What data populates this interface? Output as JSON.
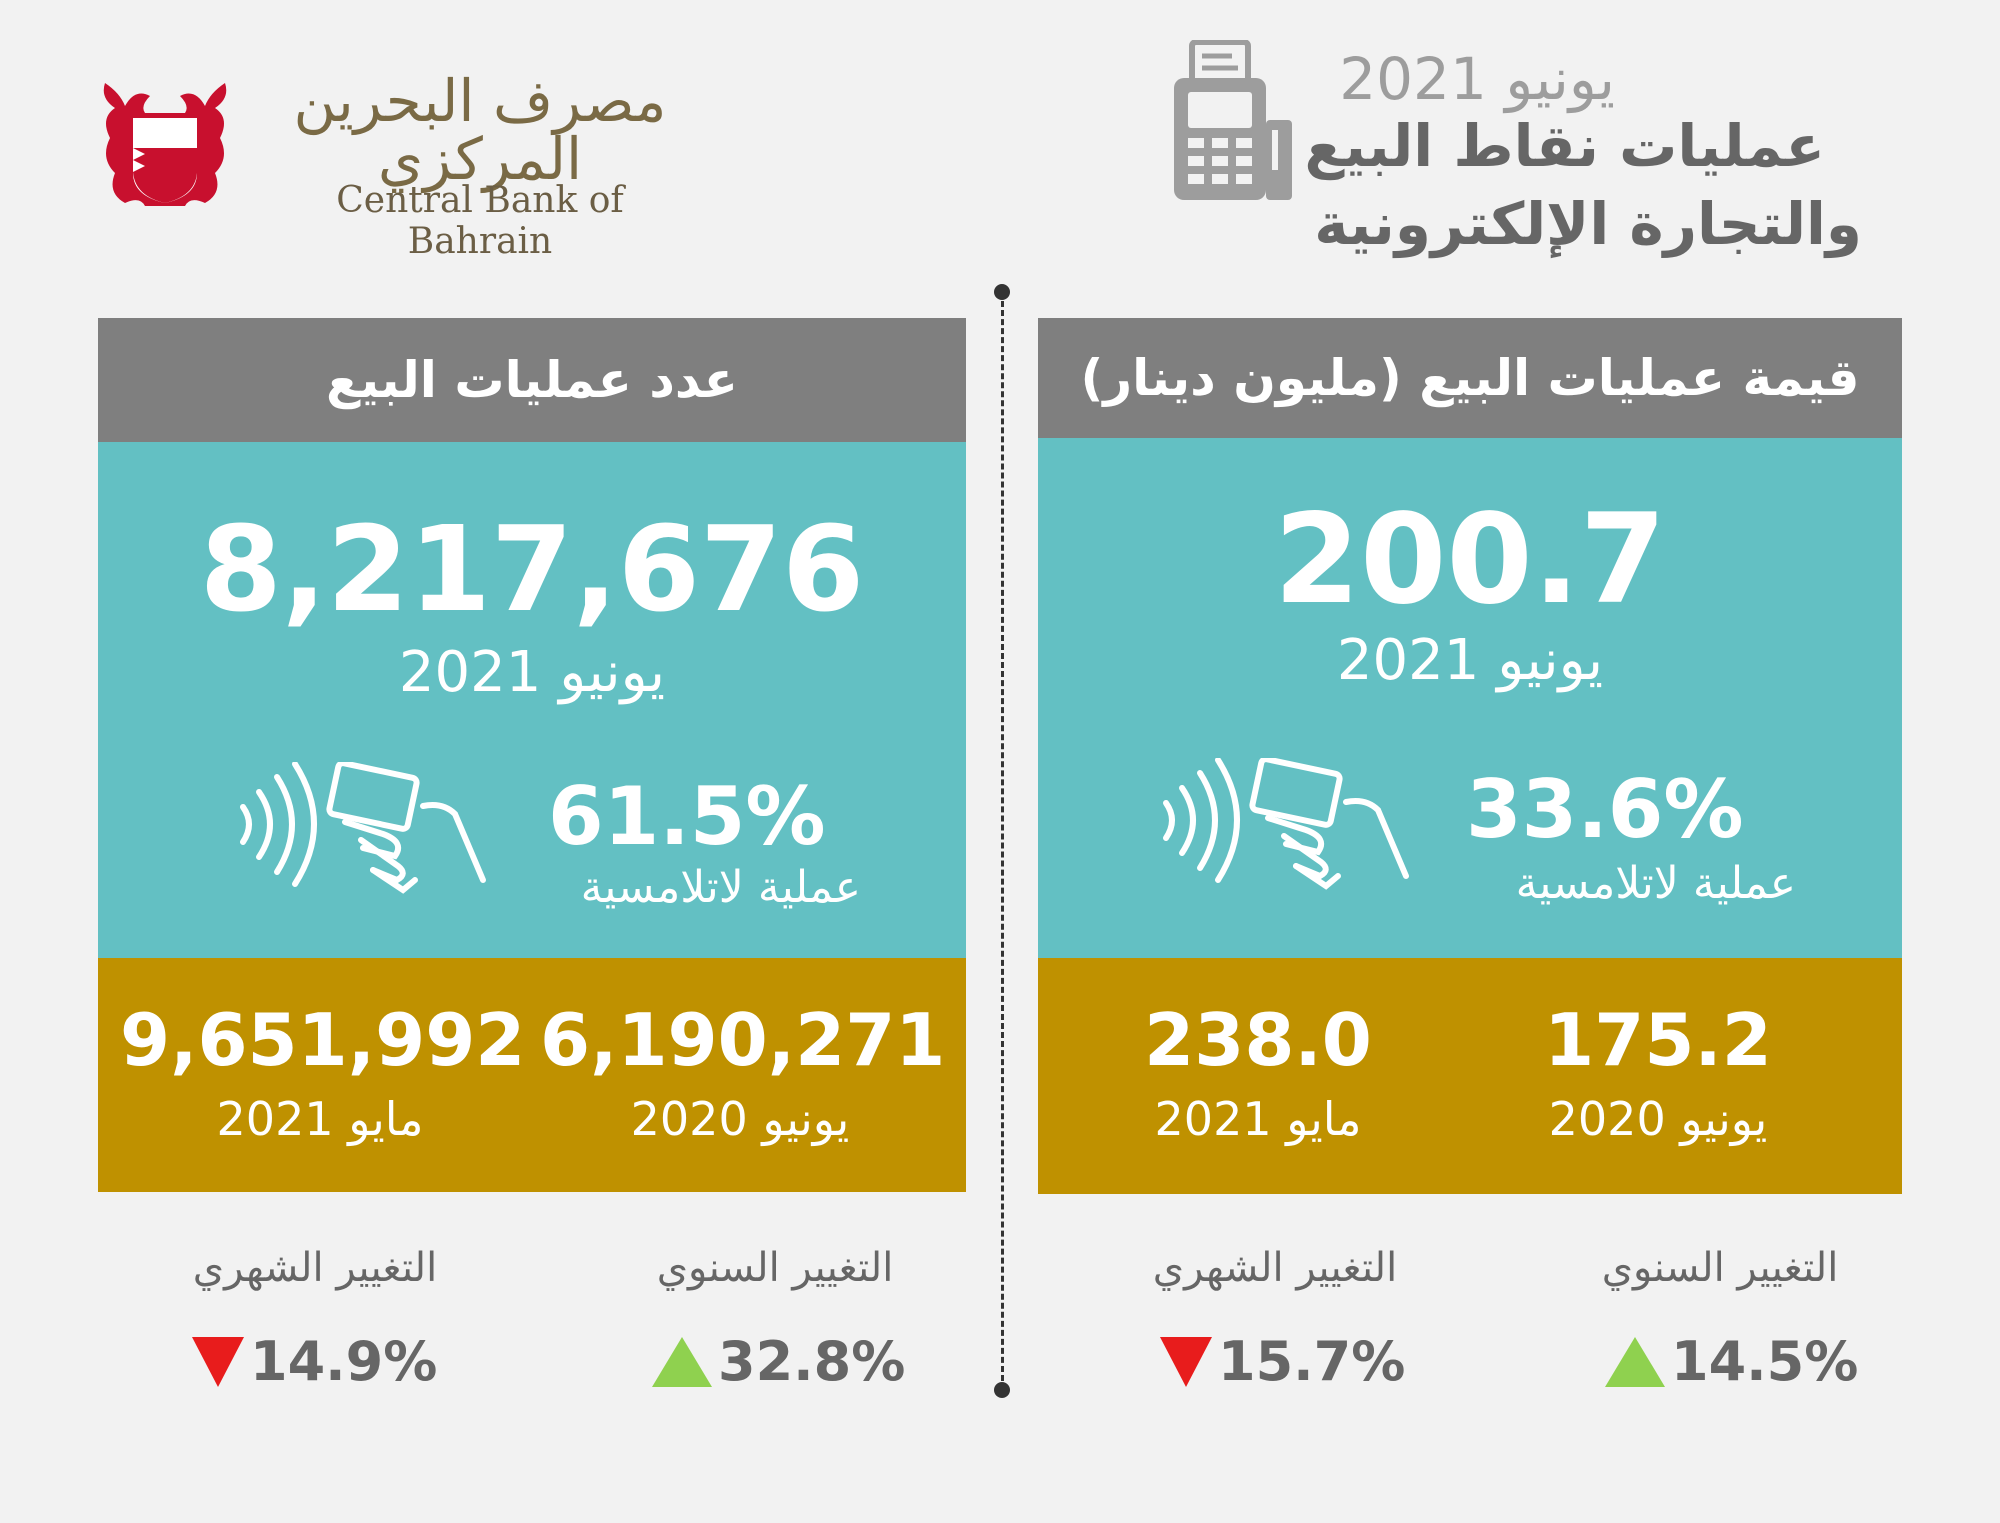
{
  "header": {
    "bank_name_ar": "مصرف البحرين المركزي",
    "bank_name_en": "Central Bank of Bahrain",
    "date": "يونيو 2021",
    "title_line1": "عمليات نقاط البيع",
    "title_line2": "والتجارة الإلكترونية"
  },
  "value_panel": {
    "heading": "قيمة عمليات البيع (مليون دينار)",
    "main_value": "200.7",
    "main_date": "يونيو 2021",
    "contactless_pct": "33.6%",
    "contactless_label": "عملية لاتلامسية",
    "comparisons": [
      {
        "value": "175.2",
        "date": "يونيو 2020"
      },
      {
        "value": "238.0",
        "date": "مايو 2021"
      }
    ],
    "changes": [
      {
        "label": "التغيير السنوي",
        "value": "14.5%",
        "direction": "up"
      },
      {
        "label": "التغيير الشهري",
        "value": "15.7%",
        "direction": "down"
      }
    ]
  },
  "count_panel": {
    "heading": "عدد عمليات البيع",
    "main_value": "8,217,676",
    "main_date": "يونيو 2021",
    "contactless_pct": "61.5%",
    "contactless_label": "عملية لاتلامسية",
    "comparisons": [
      {
        "value": "6,190,271",
        "date": "يونيو 2020"
      },
      {
        "value": "9,651,992",
        "date": "مايو 2021"
      }
    ],
    "changes": [
      {
        "label": "التغيير السنوي",
        "value": "32.8%",
        "direction": "up"
      },
      {
        "label": "التغيير الشهري",
        "value": "14.9%",
        "direction": "down"
      }
    ]
  },
  "colors": {
    "header_gray": "#7f7f7f",
    "teal": "#63c0c3",
    "gold": "#bf9100",
    "up_green": "#8fd14f",
    "down_red": "#e81c1c"
  }
}
